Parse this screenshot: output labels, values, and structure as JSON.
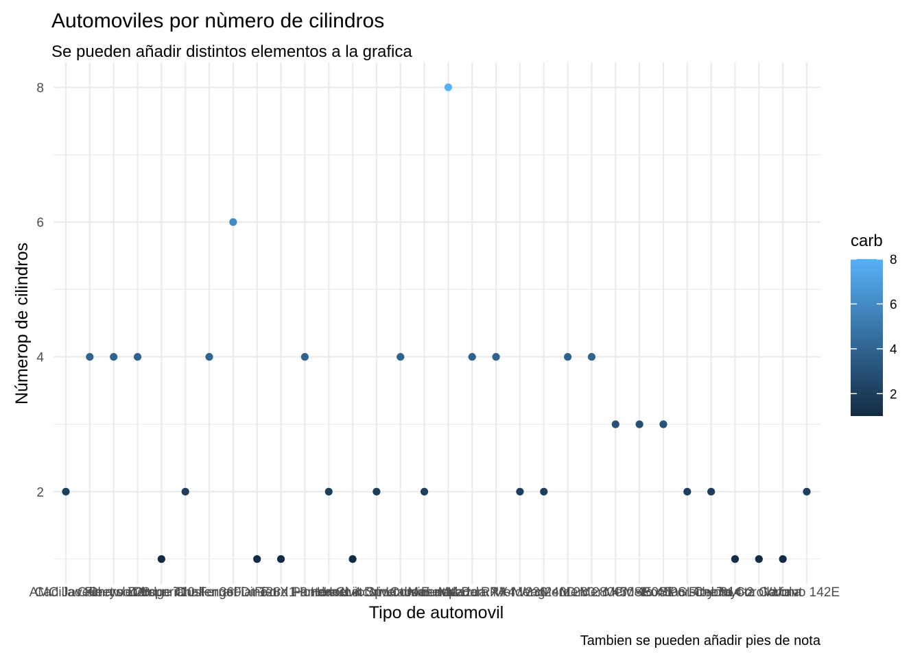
{
  "chart_data": {
    "type": "scatter",
    "title": "Automoviles por nùmero de cilindros",
    "subtitle": "Se pueden añadir distintos elementos a la grafica",
    "caption": "Tambien se pueden añadir pies de nota",
    "xlabel": "Tipo de automovil",
    "ylabel": "Númerop de cilindros",
    "x": [
      "AMC Javelin",
      "Cadillac Fleetwood",
      "Camaro Z28",
      "Chrysler Imperial",
      "Datsun 710",
      "Dodge Challenger",
      "Duster 360",
      "Ferrari Dino",
      "Fiat 128",
      "Fiat X1-9",
      "Ford Pantera L",
      "Honda Civic",
      "Hornet 4 Drive",
      "Hornet Sportabout",
      "Lincoln Continental",
      "Lotus Europa",
      "Maserati Bora",
      "Mazda RX4",
      "Mazda RX4 Wag",
      "Merc 230",
      "Merc 240D",
      "Merc 280",
      "Merc 280C",
      "Merc 450SE",
      "Merc 450SL",
      "Merc 450SLC",
      "Pontiac Firebird",
      "Porsche 914-2",
      "Toyota Corolla",
      "Toyota Corona",
      "Valiant",
      "Volvo 142E"
    ],
    "y": [
      2,
      4,
      4,
      4,
      1,
      2,
      4,
      6,
      1,
      1,
      4,
      2,
      1,
      2,
      4,
      2,
      8,
      4,
      4,
      2,
      2,
      4,
      4,
      3,
      3,
      3,
      2,
      2,
      1,
      1,
      1,
      2
    ],
    "color_by": "carb",
    "ylim": [
      0.63,
      8.37
    ],
    "yticks": [
      2,
      4,
      6,
      8
    ],
    "grid": true,
    "legend": {
      "title": "carb",
      "position": "right",
      "type": "colorbar",
      "range": [
        1,
        8
      ],
      "ticks": [
        2,
        4,
        6,
        8
      ],
      "color_low": "#132B43",
      "color_high": "#56B1F7"
    }
  }
}
